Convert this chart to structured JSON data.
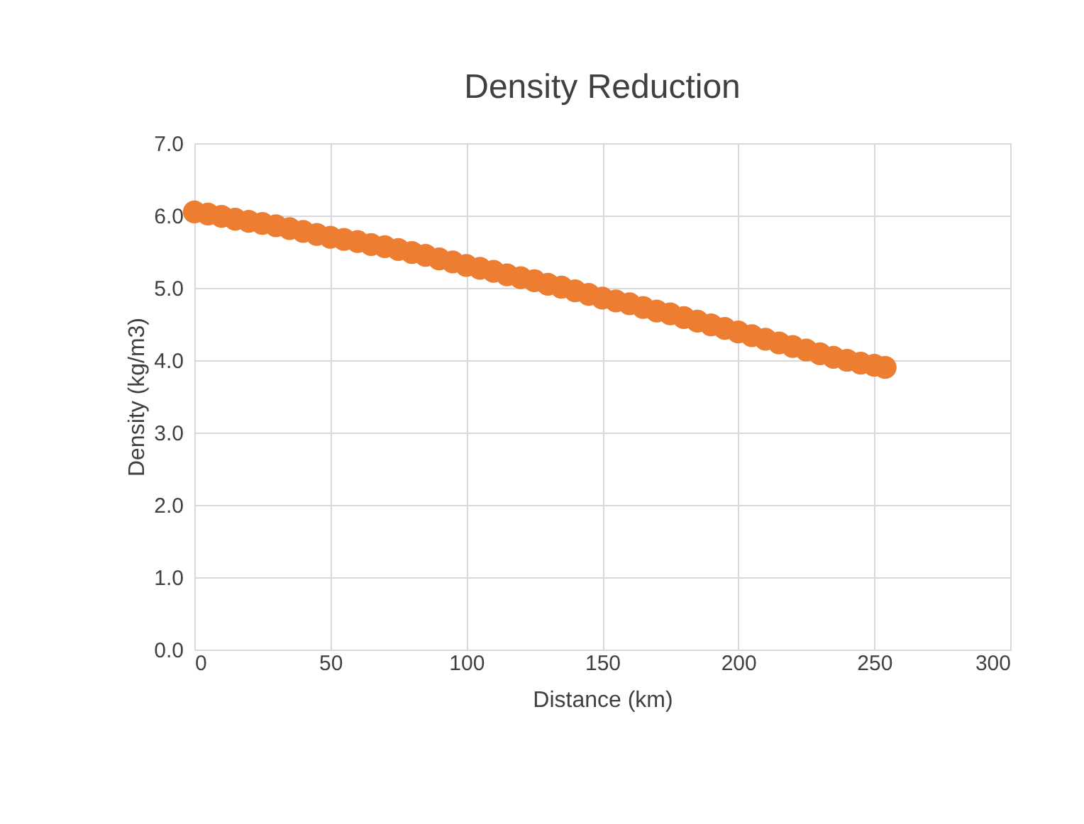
{
  "chart_data": {
    "type": "scatter",
    "title": "Density Reduction",
    "xlabel": "Distance (km)",
    "ylabel": "Density (kg/m3)",
    "x": [
      0,
      5,
      10,
      15,
      20,
      25,
      30,
      35,
      40,
      45,
      50,
      55,
      60,
      65,
      70,
      75,
      80,
      85,
      90,
      95,
      100,
      105,
      110,
      115,
      120,
      125,
      130,
      135,
      140,
      145,
      150,
      155,
      160,
      165,
      170,
      175,
      180,
      185,
      190,
      195,
      200,
      205,
      210,
      215,
      220,
      225,
      230,
      235,
      240,
      245,
      250,
      254
    ],
    "series": [
      {
        "color": "#ed7d31",
        "values": [
          6.05,
          6.02,
          5.99,
          5.95,
          5.92,
          5.89,
          5.86,
          5.82,
          5.78,
          5.74,
          5.7,
          5.67,
          5.64,
          5.6,
          5.57,
          5.53,
          5.49,
          5.45,
          5.4,
          5.36,
          5.31,
          5.27,
          5.23,
          5.18,
          5.14,
          5.1,
          5.05,
          5.01,
          4.96,
          4.91,
          4.86,
          4.82,
          4.78,
          4.73,
          4.68,
          4.64,
          4.59,
          4.54,
          4.49,
          4.44,
          4.39,
          4.34,
          4.29,
          4.24,
          4.19,
          4.14,
          4.09,
          4.04,
          4.0,
          3.96,
          3.93,
          3.9
        ]
      }
    ],
    "xlim": [
      0,
      300
    ],
    "xticks": [
      0,
      50,
      100,
      150,
      200,
      250,
      300
    ],
    "ylim": [
      0,
      7
    ],
    "yticks": [
      {
        "value": 0,
        "label": "0.0"
      },
      {
        "value": 1,
        "label": "1.0"
      },
      {
        "value": 2,
        "label": "2.0"
      },
      {
        "value": 3,
        "label": "3.0"
      },
      {
        "value": 4,
        "label": "4.0"
      },
      {
        "value": 5,
        "label": "5.0"
      },
      {
        "value": 6,
        "label": "6.0"
      },
      {
        "value": 7,
        "label": "7.0"
      }
    ],
    "grid": true,
    "marker": "circle",
    "legend": false
  }
}
